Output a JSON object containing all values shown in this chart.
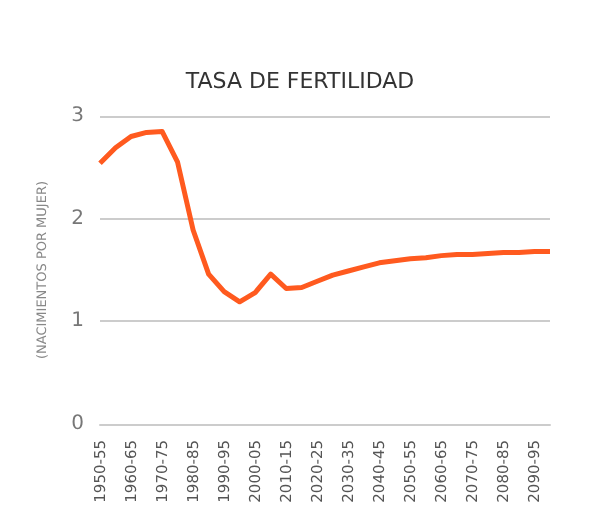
{
  "chart_data": {
    "type": "line",
    "title": "TASA DE FERTILIDAD",
    "ylabel": "(NACIMIENTOS POR MUJER)",
    "categories": [
      "1950-55",
      null,
      "1960-65",
      null,
      "1970-75",
      null,
      "1980-85",
      null,
      "1990-95",
      null,
      "2000-05",
      null,
      "2010-15",
      null,
      "2020-25",
      null,
      "2030-35",
      null,
      "2040-45",
      null,
      "2050-55",
      null,
      "2060-65",
      null,
      "2070-75",
      null,
      "2080-85",
      null,
      "2090-95",
      null
    ],
    "series": [
      {
        "color": "#ff5a1f",
        "values": [
          2.54,
          2.69,
          2.8,
          2.84,
          2.85,
          2.55,
          1.89,
          1.46,
          1.29,
          1.19,
          1.28,
          1.46,
          1.32,
          1.33,
          1.39,
          1.45,
          1.49,
          1.53,
          1.57,
          1.59,
          1.61,
          1.62,
          1.64,
          1.65,
          1.65,
          1.66,
          1.67,
          1.67,
          1.68,
          1.68
        ]
      }
    ],
    "ylim": [
      0,
      3
    ],
    "yticks": [
      0,
      1,
      2,
      3
    ],
    "grid": "y",
    "marker": "none",
    "line_style": "solid"
  }
}
